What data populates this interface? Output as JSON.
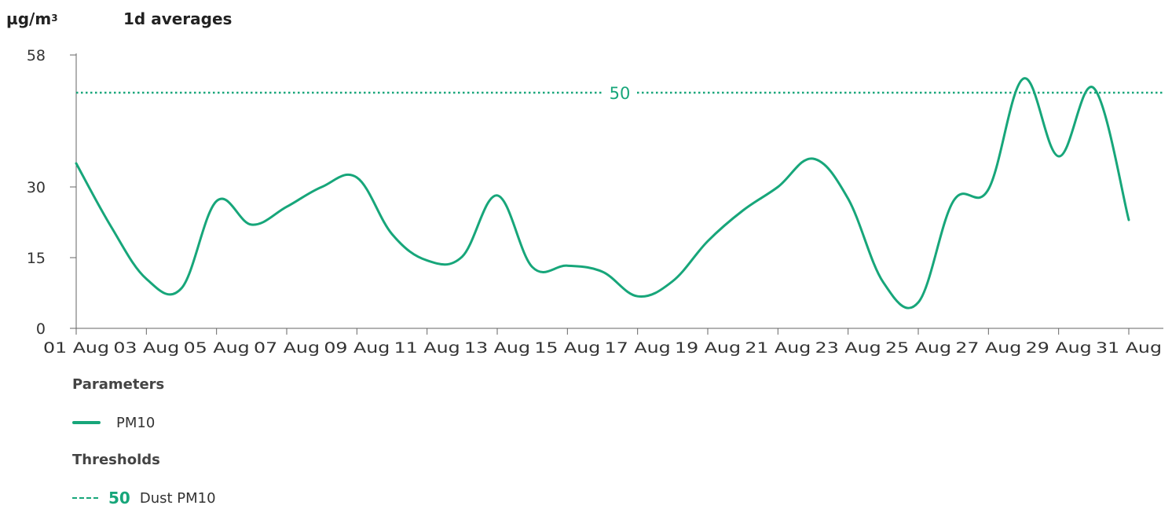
{
  "header": {
    "unit_base": "µg/m",
    "unit_exponent": "3",
    "aggregation": "1d averages"
  },
  "legend": {
    "parameters_heading": "Parameters",
    "parameter_name": "PM10",
    "thresholds_heading": "Thresholds",
    "threshold_value": "50",
    "threshold_name": "Dust PM10"
  },
  "colors": {
    "series": "#17a67a",
    "threshold": "#17a67a",
    "axis": "#666666",
    "text": "#333333"
  },
  "chart_data": {
    "type": "line",
    "ylim": [
      0,
      58
    ],
    "yticks": [
      0,
      15,
      30,
      58
    ],
    "x_tick_labels": [
      "01 Aug",
      "03 Aug",
      "05 Aug",
      "07 Aug",
      "09 Aug",
      "11 Aug",
      "13 Aug",
      "15 Aug",
      "17 Aug",
      "19 Aug",
      "21 Aug",
      "23 Aug",
      "25 Aug",
      "27 Aug",
      "29 Aug",
      "31 Aug"
    ],
    "x": [
      "01 Aug",
      "02 Aug",
      "03 Aug",
      "04 Aug",
      "05 Aug",
      "06 Aug",
      "07 Aug",
      "08 Aug",
      "09 Aug",
      "10 Aug",
      "11 Aug",
      "12 Aug",
      "13 Aug",
      "14 Aug",
      "15 Aug",
      "16 Aug",
      "17 Aug",
      "18 Aug",
      "19 Aug",
      "20 Aug",
      "21 Aug",
      "22 Aug",
      "23 Aug",
      "24 Aug",
      "25 Aug",
      "26 Aug",
      "27 Aug",
      "28 Aug",
      "29 Aug",
      "30 Aug",
      "31 Aug"
    ],
    "series": [
      {
        "name": "PM10",
        "values": [
          35.0,
          21.5,
          10.5,
          8.5,
          27.0,
          22.0,
          25.8,
          30.0,
          32.0,
          20.0,
          14.4,
          15.2,
          28.2,
          13.0,
          13.3,
          12.0,
          6.8,
          10.0,
          18.5,
          25.0,
          30.0,
          36.0,
          27.5,
          9.8,
          5.5,
          27.0,
          29.5,
          53.0,
          36.5,
          51.0,
          23.0
        ]
      }
    ],
    "thresholds": [
      {
        "value": 50,
        "label": "50",
        "name": "Dust PM10"
      }
    ]
  }
}
